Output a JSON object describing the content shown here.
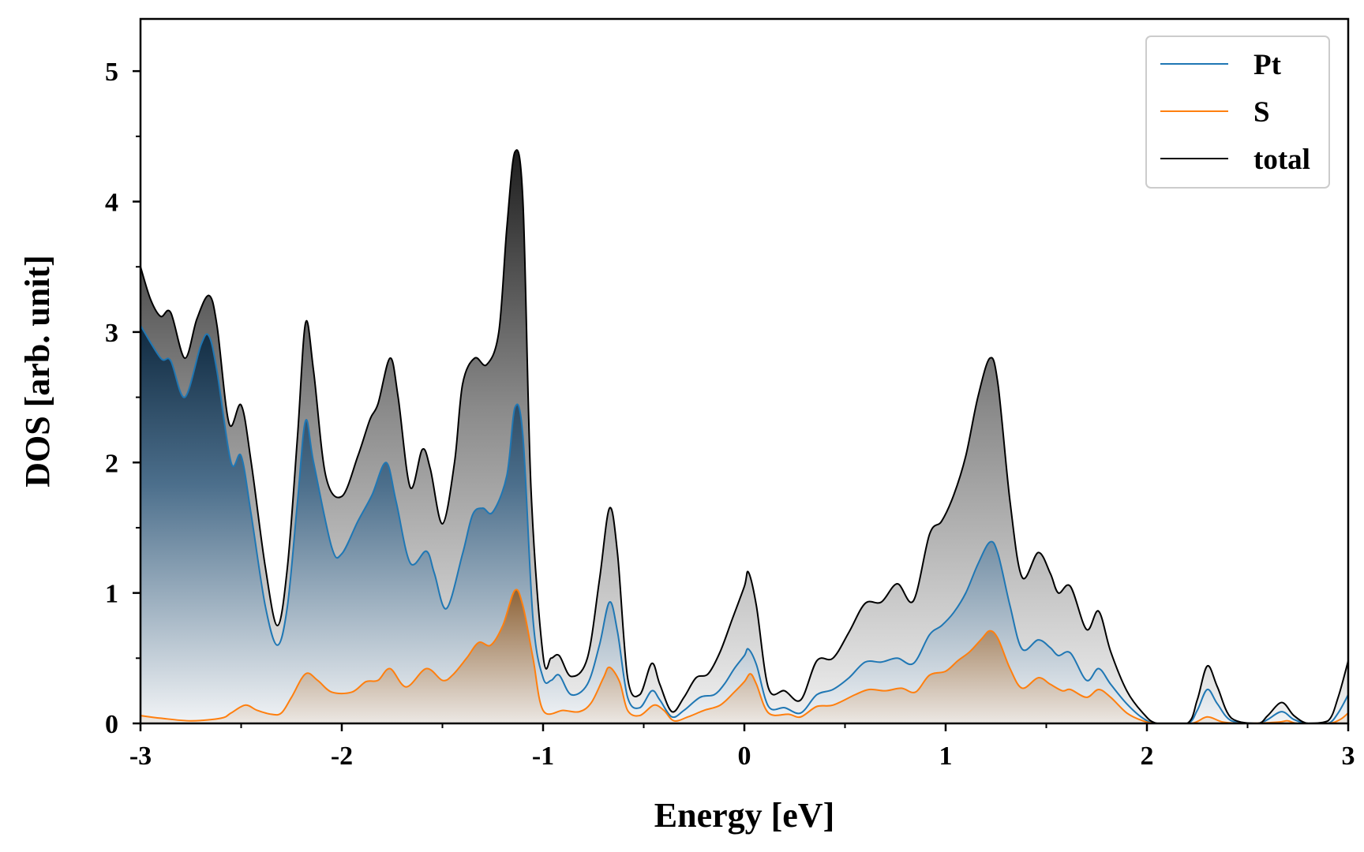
{
  "chart_data": {
    "type": "area",
    "xlabel": "Energy [eV]",
    "ylabel": "DOS [arb. unit]",
    "xlim": [
      -3,
      3
    ],
    "ylim": [
      0,
      5.4
    ],
    "xticks": [
      -3,
      -2,
      -1,
      0,
      1,
      2,
      3
    ],
    "xtick_labels": [
      "-3",
      "-2",
      "-1",
      "0",
      "1",
      "2",
      "3"
    ],
    "yticks": [
      0,
      1,
      2,
      3,
      4,
      5
    ],
    "ytick_labels": [
      "0",
      "1",
      "2",
      "3",
      "4",
      "5"
    ],
    "grid": false,
    "legend_position": "top-right",
    "series": [
      {
        "name": "Pt",
        "color": "#1f77b4",
        "fill": "gradient-navy",
        "points": [
          [
            -3.0,
            3.05
          ],
          [
            -2.9,
            2.8
          ],
          [
            -2.85,
            2.78
          ],
          [
            -2.78,
            2.5
          ],
          [
            -2.7,
            2.9
          ],
          [
            -2.66,
            2.97
          ],
          [
            -2.62,
            2.7
          ],
          [
            -2.55,
            2.0
          ],
          [
            -2.5,
            2.05
          ],
          [
            -2.45,
            1.6
          ],
          [
            -2.38,
            0.9
          ],
          [
            -2.32,
            0.6
          ],
          [
            -2.27,
            0.9
          ],
          [
            -2.22,
            1.7
          ],
          [
            -2.18,
            2.32
          ],
          [
            -2.14,
            2.0
          ],
          [
            -2.05,
            1.35
          ],
          [
            -2.0,
            1.3
          ],
          [
            -1.92,
            1.55
          ],
          [
            -1.85,
            1.75
          ],
          [
            -1.78,
            2.0
          ],
          [
            -1.73,
            1.7
          ],
          [
            -1.66,
            1.23
          ],
          [
            -1.58,
            1.32
          ],
          [
            -1.54,
            1.15
          ],
          [
            -1.48,
            0.88
          ],
          [
            -1.4,
            1.3
          ],
          [
            -1.35,
            1.6
          ],
          [
            -1.3,
            1.65
          ],
          [
            -1.25,
            1.62
          ],
          [
            -1.18,
            1.9
          ],
          [
            -1.14,
            2.42
          ],
          [
            -1.1,
            2.2
          ],
          [
            -1.05,
            0.8
          ],
          [
            -1.0,
            0.35
          ],
          [
            -0.96,
            0.33
          ],
          [
            -0.92,
            0.37
          ],
          [
            -0.86,
            0.22
          ],
          [
            -0.78,
            0.3
          ],
          [
            -0.72,
            0.6
          ],
          [
            -0.67,
            0.93
          ],
          [
            -0.63,
            0.7
          ],
          [
            -0.58,
            0.2
          ],
          [
            -0.52,
            0.12
          ],
          [
            -0.46,
            0.25
          ],
          [
            -0.42,
            0.18
          ],
          [
            -0.36,
            0.05
          ],
          [
            -0.3,
            0.1
          ],
          [
            -0.22,
            0.2
          ],
          [
            -0.15,
            0.22
          ],
          [
            -0.1,
            0.3
          ],
          [
            -0.05,
            0.42
          ],
          [
            0.0,
            0.52
          ],
          [
            0.02,
            0.57
          ],
          [
            0.06,
            0.45
          ],
          [
            0.12,
            0.13
          ],
          [
            0.2,
            0.12
          ],
          [
            0.28,
            0.08
          ],
          [
            0.36,
            0.22
          ],
          [
            0.44,
            0.26
          ],
          [
            0.52,
            0.35
          ],
          [
            0.6,
            0.47
          ],
          [
            0.68,
            0.47
          ],
          [
            0.76,
            0.5
          ],
          [
            0.84,
            0.46
          ],
          [
            0.92,
            0.68
          ],
          [
            0.98,
            0.75
          ],
          [
            1.04,
            0.85
          ],
          [
            1.1,
            1.0
          ],
          [
            1.16,
            1.22
          ],
          [
            1.22,
            1.39
          ],
          [
            1.26,
            1.3
          ],
          [
            1.32,
            0.9
          ],
          [
            1.38,
            0.57
          ],
          [
            1.46,
            0.64
          ],
          [
            1.52,
            0.58
          ],
          [
            1.56,
            0.52
          ],
          [
            1.62,
            0.54
          ],
          [
            1.7,
            0.33
          ],
          [
            1.76,
            0.42
          ],
          [
            1.82,
            0.3
          ],
          [
            1.9,
            0.15
          ],
          [
            1.98,
            0.04
          ],
          [
            2.05,
            0.0
          ],
          [
            2.2,
            0.0
          ],
          [
            2.25,
            0.1
          ],
          [
            2.3,
            0.26
          ],
          [
            2.35,
            0.15
          ],
          [
            2.42,
            0.02
          ],
          [
            2.55,
            0.0
          ],
          [
            2.6,
            0.03
          ],
          [
            2.67,
            0.09
          ],
          [
            2.73,
            0.03
          ],
          [
            2.8,
            0.0
          ],
          [
            2.9,
            0.0
          ],
          [
            2.95,
            0.08
          ],
          [
            3.0,
            0.22
          ]
        ]
      },
      {
        "name": "S",
        "color": "#ff7f0e",
        "fill": "gradient-brown",
        "points": [
          [
            -3.0,
            0.06
          ],
          [
            -2.9,
            0.04
          ],
          [
            -2.75,
            0.02
          ],
          [
            -2.6,
            0.04
          ],
          [
            -2.55,
            0.08
          ],
          [
            -2.48,
            0.14
          ],
          [
            -2.42,
            0.1
          ],
          [
            -2.35,
            0.07
          ],
          [
            -2.3,
            0.08
          ],
          [
            -2.25,
            0.2
          ],
          [
            -2.18,
            0.38
          ],
          [
            -2.12,
            0.33
          ],
          [
            -2.05,
            0.24
          ],
          [
            -1.95,
            0.24
          ],
          [
            -1.88,
            0.32
          ],
          [
            -1.82,
            0.33
          ],
          [
            -1.76,
            0.42
          ],
          [
            -1.68,
            0.28
          ],
          [
            -1.58,
            0.42
          ],
          [
            -1.5,
            0.33
          ],
          [
            -1.45,
            0.37
          ],
          [
            -1.38,
            0.5
          ],
          [
            -1.32,
            0.62
          ],
          [
            -1.26,
            0.6
          ],
          [
            -1.2,
            0.75
          ],
          [
            -1.14,
            1.02
          ],
          [
            -1.1,
            0.9
          ],
          [
            -1.05,
            0.5
          ],
          [
            -1.0,
            0.1
          ],
          [
            -0.9,
            0.1
          ],
          [
            -0.82,
            0.09
          ],
          [
            -0.76,
            0.16
          ],
          [
            -0.7,
            0.35
          ],
          [
            -0.67,
            0.43
          ],
          [
            -0.62,
            0.32
          ],
          [
            -0.58,
            0.1
          ],
          [
            -0.52,
            0.06
          ],
          [
            -0.45,
            0.14
          ],
          [
            -0.4,
            0.1
          ],
          [
            -0.35,
            0.02
          ],
          [
            -0.28,
            0.05
          ],
          [
            -0.2,
            0.1
          ],
          [
            -0.12,
            0.14
          ],
          [
            -0.05,
            0.24
          ],
          [
            0.0,
            0.32
          ],
          [
            0.03,
            0.38
          ],
          [
            0.06,
            0.3
          ],
          [
            0.12,
            0.08
          ],
          [
            0.22,
            0.07
          ],
          [
            0.28,
            0.05
          ],
          [
            0.36,
            0.13
          ],
          [
            0.44,
            0.14
          ],
          [
            0.55,
            0.22
          ],
          [
            0.62,
            0.26
          ],
          [
            0.7,
            0.25
          ],
          [
            0.78,
            0.27
          ],
          [
            0.85,
            0.24
          ],
          [
            0.92,
            0.37
          ],
          [
            1.0,
            0.4
          ],
          [
            1.06,
            0.48
          ],
          [
            1.12,
            0.55
          ],
          [
            1.18,
            0.65
          ],
          [
            1.22,
            0.71
          ],
          [
            1.26,
            0.65
          ],
          [
            1.32,
            0.42
          ],
          [
            1.38,
            0.27
          ],
          [
            1.46,
            0.35
          ],
          [
            1.52,
            0.3
          ],
          [
            1.58,
            0.25
          ],
          [
            1.62,
            0.26
          ],
          [
            1.7,
            0.2
          ],
          [
            1.76,
            0.26
          ],
          [
            1.82,
            0.2
          ],
          [
            1.9,
            0.08
          ],
          [
            1.98,
            0.02
          ],
          [
            2.05,
            0.0
          ],
          [
            2.22,
            0.0
          ],
          [
            2.3,
            0.05
          ],
          [
            2.38,
            0.01
          ],
          [
            2.5,
            0.0
          ],
          [
            2.65,
            0.01
          ],
          [
            2.7,
            0.02
          ],
          [
            2.75,
            0.0
          ],
          [
            2.9,
            0.0
          ],
          [
            2.96,
            0.03
          ],
          [
            3.0,
            0.08
          ]
        ]
      },
      {
        "name": "total",
        "color": "#000000",
        "fill": "gradient-gray",
        "points": [
          [
            -3.0,
            3.5
          ],
          [
            -2.95,
            3.25
          ],
          [
            -2.9,
            3.12
          ],
          [
            -2.85,
            3.15
          ],
          [
            -2.78,
            2.8
          ],
          [
            -2.72,
            3.1
          ],
          [
            -2.66,
            3.28
          ],
          [
            -2.62,
            3.05
          ],
          [
            -2.56,
            2.3
          ],
          [
            -2.5,
            2.44
          ],
          [
            -2.45,
            2.0
          ],
          [
            -2.38,
            1.2
          ],
          [
            -2.32,
            0.75
          ],
          [
            -2.27,
            1.2
          ],
          [
            -2.22,
            2.2
          ],
          [
            -2.18,
            3.07
          ],
          [
            -2.14,
            2.7
          ],
          [
            -2.08,
            1.9
          ],
          [
            -2.0,
            1.74
          ],
          [
            -1.92,
            2.05
          ],
          [
            -1.86,
            2.33
          ],
          [
            -1.82,
            2.45
          ],
          [
            -1.76,
            2.8
          ],
          [
            -1.72,
            2.5
          ],
          [
            -1.66,
            1.81
          ],
          [
            -1.6,
            2.1
          ],
          [
            -1.56,
            1.95
          ],
          [
            -1.5,
            1.53
          ],
          [
            -1.44,
            2.0
          ],
          [
            -1.4,
            2.6
          ],
          [
            -1.34,
            2.8
          ],
          [
            -1.28,
            2.75
          ],
          [
            -1.22,
            3.0
          ],
          [
            -1.18,
            3.8
          ],
          [
            -1.14,
            4.38
          ],
          [
            -1.1,
            4.0
          ],
          [
            -1.06,
            1.8
          ],
          [
            -1.0,
            0.52
          ],
          [
            -0.96,
            0.5
          ],
          [
            -0.92,
            0.52
          ],
          [
            -0.86,
            0.36
          ],
          [
            -0.78,
            0.5
          ],
          [
            -0.72,
            1.1
          ],
          [
            -0.67,
            1.65
          ],
          [
            -0.63,
            1.3
          ],
          [
            -0.58,
            0.35
          ],
          [
            -0.52,
            0.22
          ],
          [
            -0.46,
            0.46
          ],
          [
            -0.42,
            0.3
          ],
          [
            -0.36,
            0.09
          ],
          [
            -0.3,
            0.2
          ],
          [
            -0.24,
            0.35
          ],
          [
            -0.18,
            0.38
          ],
          [
            -0.12,
            0.55
          ],
          [
            -0.06,
            0.8
          ],
          [
            0.0,
            1.05
          ],
          [
            0.02,
            1.16
          ],
          [
            0.06,
            0.9
          ],
          [
            0.12,
            0.27
          ],
          [
            0.2,
            0.25
          ],
          [
            0.28,
            0.18
          ],
          [
            0.36,
            0.48
          ],
          [
            0.44,
            0.5
          ],
          [
            0.52,
            0.7
          ],
          [
            0.6,
            0.92
          ],
          [
            0.68,
            0.93
          ],
          [
            0.76,
            1.07
          ],
          [
            0.84,
            0.94
          ],
          [
            0.92,
            1.45
          ],
          [
            0.98,
            1.55
          ],
          [
            1.04,
            1.75
          ],
          [
            1.1,
            2.05
          ],
          [
            1.16,
            2.5
          ],
          [
            1.22,
            2.8
          ],
          [
            1.26,
            2.6
          ],
          [
            1.32,
            1.7
          ],
          [
            1.38,
            1.12
          ],
          [
            1.46,
            1.31
          ],
          [
            1.52,
            1.15
          ],
          [
            1.56,
            1.0
          ],
          [
            1.62,
            1.05
          ],
          [
            1.7,
            0.72
          ],
          [
            1.76,
            0.86
          ],
          [
            1.82,
            0.55
          ],
          [
            1.9,
            0.25
          ],
          [
            1.98,
            0.08
          ],
          [
            2.05,
            0.0
          ],
          [
            2.2,
            0.0
          ],
          [
            2.25,
            0.18
          ],
          [
            2.3,
            0.44
          ],
          [
            2.35,
            0.28
          ],
          [
            2.42,
            0.04
          ],
          [
            2.55,
            0.0
          ],
          [
            2.6,
            0.06
          ],
          [
            2.67,
            0.16
          ],
          [
            2.73,
            0.06
          ],
          [
            2.8,
            0.0
          ],
          [
            2.9,
            0.02
          ],
          [
            2.95,
            0.2
          ],
          [
            3.0,
            0.48
          ]
        ]
      }
    ]
  }
}
